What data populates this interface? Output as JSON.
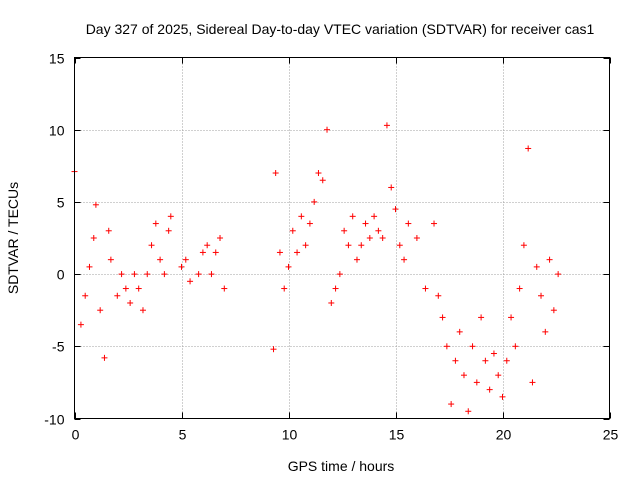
{
  "chart_data": {
    "type": "scatter",
    "title": "Day 327 of 2025, Sidereal Day-to-day VTEC variation (SDTVAR) for receiver cas1",
    "xlabel": "GPS time / hours",
    "ylabel": "SDTVAR / TECUs",
    "xlim": [
      0,
      25
    ],
    "ylim": [
      -10,
      15
    ],
    "xticks": [
      0,
      5,
      10,
      15,
      20,
      25
    ],
    "yticks": [
      -10,
      -5,
      0,
      5,
      10,
      15
    ],
    "grid": true,
    "marker": "+",
    "color": "#ff0000",
    "series": [
      {
        "name": "SDTVAR",
        "x": [
          0.0,
          0.3,
          0.5,
          0.7,
          0.9,
          1.0,
          1.2,
          1.4,
          1.6,
          1.7,
          2.0,
          2.2,
          2.4,
          2.6,
          2.8,
          3.0,
          3.2,
          3.4,
          3.6,
          3.8,
          4.0,
          4.2,
          4.4,
          4.5,
          5.0,
          5.2,
          5.4,
          5.8,
          6.0,
          6.2,
          6.4,
          6.6,
          6.8,
          7.0,
          9.3,
          9.4,
          9.6,
          9.8,
          10.0,
          10.2,
          10.4,
          10.6,
          10.8,
          11.0,
          11.2,
          11.4,
          11.6,
          11.8,
          12.0,
          12.2,
          12.4,
          12.6,
          12.8,
          13.0,
          13.2,
          13.4,
          13.6,
          13.8,
          14.0,
          14.2,
          14.4,
          14.6,
          14.8,
          15.0,
          15.2,
          15.4,
          15.6,
          16.0,
          16.4,
          16.8,
          17.0,
          17.2,
          17.4,
          17.6,
          17.8,
          18.0,
          18.2,
          18.4,
          18.6,
          18.8,
          19.0,
          19.2,
          19.4,
          19.6,
          19.8,
          20.0,
          20.2,
          20.4,
          20.6,
          20.8,
          21.0,
          21.2,
          21.4,
          21.6,
          21.8,
          22.0,
          22.2,
          22.4,
          22.6
        ],
        "y": [
          7.1,
          -3.5,
          -1.5,
          0.5,
          2.5,
          4.8,
          -2.5,
          -5.8,
          3.0,
          1.0,
          -1.5,
          0.0,
          -1.0,
          -2.0,
          0.0,
          -1.0,
          -2.5,
          0.0,
          2.0,
          3.5,
          1.0,
          0.0,
          3.0,
          4.0,
          0.5,
          1.0,
          -0.5,
          0.0,
          1.5,
          2.0,
          0.0,
          1.5,
          2.5,
          -1.0,
          -5.2,
          7.0,
          1.5,
          -1.0,
          0.5,
          3.0,
          1.5,
          4.0,
          2.0,
          3.5,
          5.0,
          7.0,
          6.5,
          10.0,
          -2.0,
          -1.0,
          0.0,
          3.0,
          2.0,
          4.0,
          1.0,
          2.0,
          3.5,
          2.5,
          4.0,
          3.0,
          2.5,
          10.3,
          6.0,
          4.5,
          2.0,
          1.0,
          3.5,
          2.5,
          -1.0,
          3.5,
          -1.5,
          -3.0,
          -5.0,
          -9.0,
          -6.0,
          -4.0,
          -7.0,
          -9.5,
          -5.0,
          -7.5,
          -3.0,
          -6.0,
          -8.0,
          -5.5,
          -7.0,
          -8.5,
          -6.0,
          -3.0,
          -5.0,
          -1.0,
          2.0,
          8.7,
          -7.5,
          0.5,
          -1.5,
          -4.0,
          1.0,
          -2.5,
          0.0
        ]
      }
    ]
  }
}
